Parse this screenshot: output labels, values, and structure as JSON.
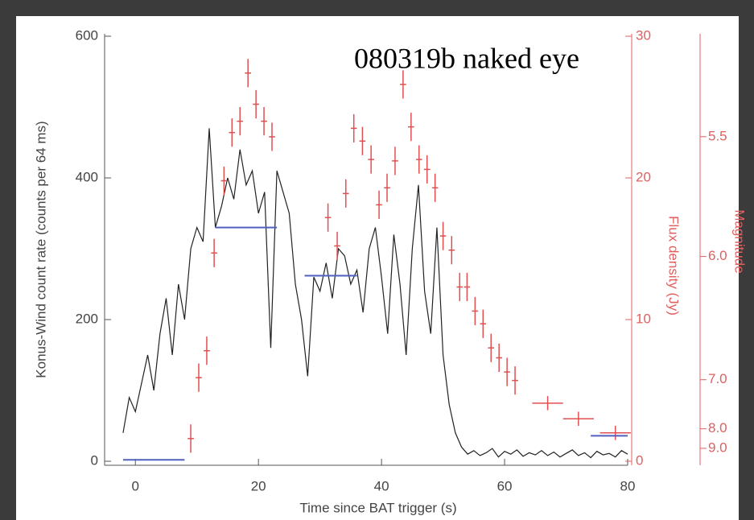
{
  "chart_data": {
    "type": "lightcurve",
    "annotation": "080319b naked eye",
    "xlabel": "Time since BAT trigger (s)",
    "ylabel": "Konus-Wind count rate (counts per 64 ms)",
    "y2label": "Flux density (Jy)",
    "y3label": "Magnitude",
    "xlim": [
      -5,
      80
    ],
    "xticks": [
      0,
      20,
      40,
      60,
      80
    ],
    "ylim": [
      0,
      600
    ],
    "yticks": [
      0,
      200,
      400,
      600
    ],
    "y2lim": [
      0,
      30
    ],
    "y2ticks": [
      0,
      10,
      20,
      30
    ],
    "y3_zero_point": 8.9,
    "y3ticks": [
      5.5,
      {
        "value": 6,
        "label": "6.0"
      },
      {
        "value": 7,
        "label": "7.0"
      },
      {
        "value": 8,
        "label": "8.0"
      },
      {
        "value": 9,
        "label": "9.0"
      }
    ],
    "y2color": "#e06060",
    "series": [
      {
        "type": "line",
        "color": "#222222",
        "x": [
          -2,
          -1,
          0,
          1,
          2,
          3,
          4,
          5,
          6,
          7,
          8,
          9,
          10,
          11,
          12,
          13,
          14,
          15,
          16,
          17,
          18,
          19,
          20,
          21,
          22,
          23,
          24,
          25,
          26,
          27,
          28,
          29,
          30,
          31,
          32,
          33,
          34,
          35,
          36,
          37,
          38,
          39,
          40,
          41,
          42,
          43,
          44,
          45,
          46,
          47,
          48,
          49,
          50,
          51,
          52,
          53,
          54,
          55,
          56,
          57,
          58,
          59,
          60,
          61,
          62,
          63,
          64,
          65,
          66,
          67,
          68,
          69,
          70,
          71,
          72,
          73,
          74,
          75,
          76,
          77,
          78,
          79,
          80
        ],
        "values": [
          40,
          90,
          70,
          110,
          150,
          100,
          180,
          230,
          150,
          250,
          200,
          300,
          330,
          310,
          470,
          330,
          360,
          400,
          370,
          440,
          390,
          410,
          350,
          380,
          160,
          410,
          380,
          350,
          250,
          200,
          120,
          260,
          240,
          280,
          230,
          300,
          290,
          250,
          270,
          210,
          300,
          330,
          260,
          180,
          320,
          250,
          150,
          300,
          390,
          240,
          180,
          330,
          150,
          80,
          40,
          20,
          10,
          15,
          8,
          12,
          18,
          6,
          14,
          10,
          16,
          7,
          12,
          9,
          15,
          8,
          13,
          6,
          11,
          16,
          8,
          12,
          5,
          14,
          9,
          11,
          6,
          15,
          10
        ]
      },
      {
        "type": "errorbar",
        "axis": "y2",
        "color": "#e05050",
        "x": [
          9,
          10.3,
          11.6,
          12.8,
          14.4,
          15.7,
          17,
          18.3,
          19.6,
          20.9,
          22.2,
          31.3,
          32.8,
          34.2,
          35.5,
          36.9,
          38.3,
          39.6,
          40.9,
          42.2,
          43.5,
          44.8,
          46.1,
          47.4,
          48.7,
          50,
          51.4,
          52.7,
          53.9,
          55.2,
          56.5,
          57.8,
          59.1,
          60.4,
          61.7,
          67,
          72,
          78
        ],
        "values": [
          1.6,
          5.9,
          7.8,
          14.7,
          19.8,
          23.2,
          24,
          27.4,
          25.2,
          24,
          22.9,
          17.2,
          15.2,
          18.9,
          23.5,
          22.6,
          21.3,
          18.1,
          19.3,
          21.2,
          26.6,
          23.6,
          21.3,
          20.6,
          19.3,
          15.9,
          14.9,
          12.3,
          12.3,
          10.6,
          9.7,
          8,
          7.3,
          6.3,
          5.7,
          4.1,
          3,
          2
        ],
        "xerr": [
          0.5,
          0.5,
          0.5,
          0.5,
          0.5,
          0.5,
          0.5,
          0.5,
          0.5,
          0.5,
          0.5,
          0.5,
          0.5,
          0.5,
          0.5,
          0.5,
          0.5,
          0.5,
          0.5,
          0.5,
          0.5,
          0.5,
          0.5,
          0.5,
          0.5,
          0.5,
          0.5,
          0.5,
          0.5,
          0.5,
          0.5,
          0.5,
          0.5,
          0.5,
          0.5,
          2.5,
          2.5,
          2.5
        ],
        "yerr": [
          1,
          1,
          1,
          1,
          1,
          1,
          1,
          1,
          1,
          1,
          1,
          1,
          1,
          1,
          1,
          1,
          1,
          1,
          1,
          1,
          1,
          1,
          1,
          1,
          1,
          1,
          1,
          1,
          1,
          1,
          1,
          1,
          1,
          1,
          1,
          0.5,
          0.5,
          0.5
        ]
      },
      {
        "type": "segments",
        "axis": "y2",
        "color": "#5060c0",
        "x_start": [
          -2,
          13,
          27.5,
          74
        ],
        "x_end": [
          8,
          23,
          36,
          80
        ],
        "values": [
          0.1,
          16.5,
          13.1,
          1.8
        ]
      }
    ]
  }
}
